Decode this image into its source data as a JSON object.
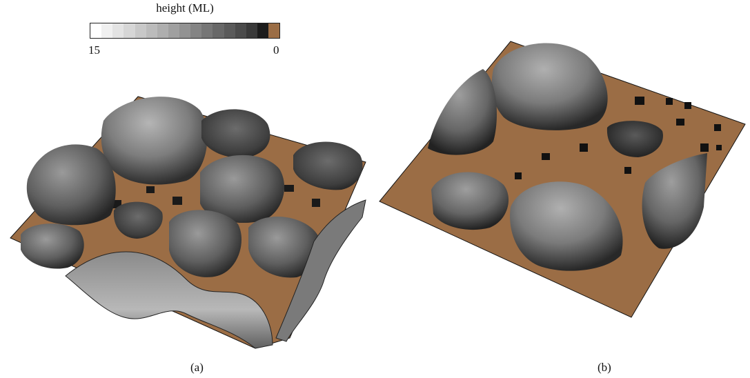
{
  "figure": {
    "colorbar": {
      "title": "height (ML)",
      "min_label": "15",
      "max_label": "0",
      "swatches": [
        "#ffffff",
        "#f0f0f0",
        "#e3e3e3",
        "#d6d6d6",
        "#c8c8c8",
        "#bbbbbb",
        "#aeaeae",
        "#a0a0a0",
        "#929292",
        "#848484",
        "#767676",
        "#686868",
        "#5a5a5a",
        "#4b4b4b",
        "#3a3a3a",
        "#1c1c1c",
        "#9b6d45"
      ]
    },
    "panels": [
      {
        "label": "(a)"
      },
      {
        "label": "(b)"
      }
    ],
    "colors": {
      "substrate": "#9b6d45",
      "edge": "#111111"
    }
  }
}
